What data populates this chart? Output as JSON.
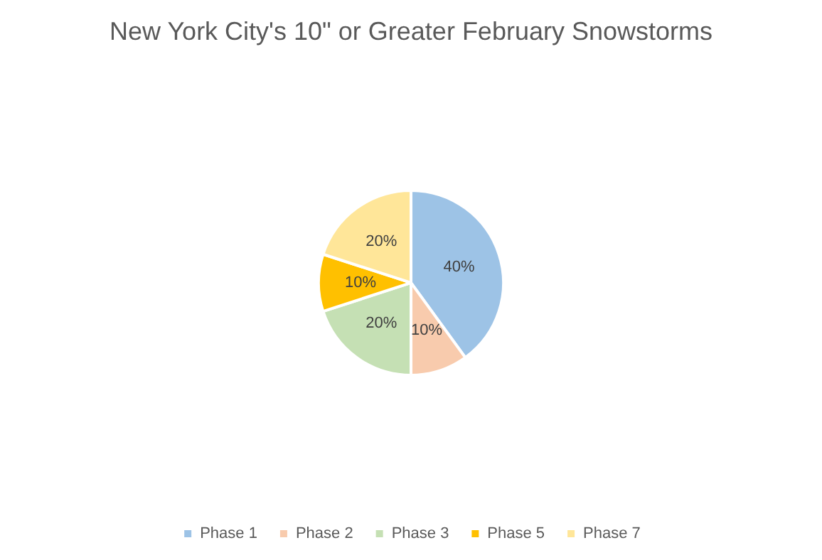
{
  "chart_data": {
    "type": "pie",
    "title": "New York City's 10\" or Greater February Snowstorms",
    "categories": [
      "Phase 1",
      "Phase 2",
      "Phase 3",
      "Phase 5",
      "Phase 7"
    ],
    "values": [
      40,
      10,
      20,
      10,
      20
    ],
    "value_labels": [
      "40%",
      "10%",
      "20%",
      "10%",
      "20%"
    ],
    "colors": [
      "#9dc3e6",
      "#f8cbad",
      "#c5e0b4",
      "#ffc000",
      "#ffe699"
    ],
    "legend": "bottom"
  }
}
